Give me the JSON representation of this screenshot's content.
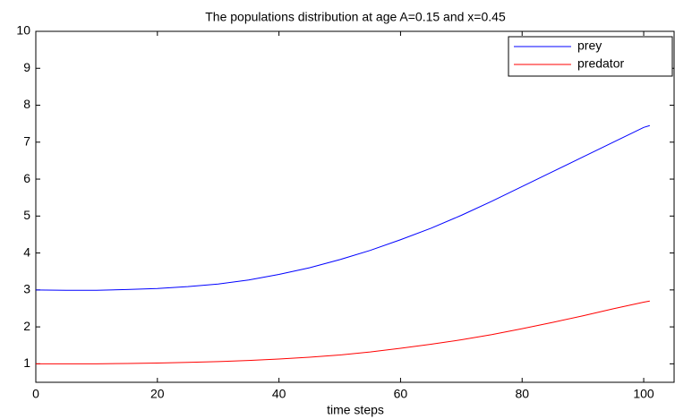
{
  "chart_data": {
    "type": "line",
    "title": "The populations distribution at age A=0.15 and x=0.45",
    "x_label": "time steps",
    "x": [
      0,
      5,
      10,
      15,
      20,
      25,
      30,
      35,
      40,
      45,
      50,
      55,
      60,
      65,
      70,
      75,
      80,
      85,
      90,
      95,
      100,
      101
    ],
    "series": [
      {
        "name": "prey",
        "color": "#0000ff",
        "values": [
          3.0,
          2.99,
          2.99,
          3.01,
          3.04,
          3.09,
          3.16,
          3.27,
          3.42,
          3.6,
          3.82,
          4.07,
          4.36,
          4.67,
          5.02,
          5.4,
          5.8,
          6.2,
          6.6,
          7.0,
          7.4,
          7.45
        ]
      },
      {
        "name": "predator",
        "color": "#ff0000",
        "values": [
          1.0,
          1.0,
          1.0,
          1.01,
          1.02,
          1.04,
          1.06,
          1.09,
          1.13,
          1.18,
          1.24,
          1.32,
          1.42,
          1.53,
          1.65,
          1.79,
          1.95,
          2.12,
          2.3,
          2.49,
          2.67,
          2.7
        ]
      }
    ],
    "xlim": [
      0,
      105
    ],
    "ylim": [
      0.5,
      10
    ],
    "xticks": [
      0,
      20,
      40,
      60,
      80,
      100
    ],
    "yticks": [
      1,
      2,
      3,
      4,
      5,
      6,
      7,
      8,
      9,
      10
    ],
    "legend": "top-right"
  }
}
